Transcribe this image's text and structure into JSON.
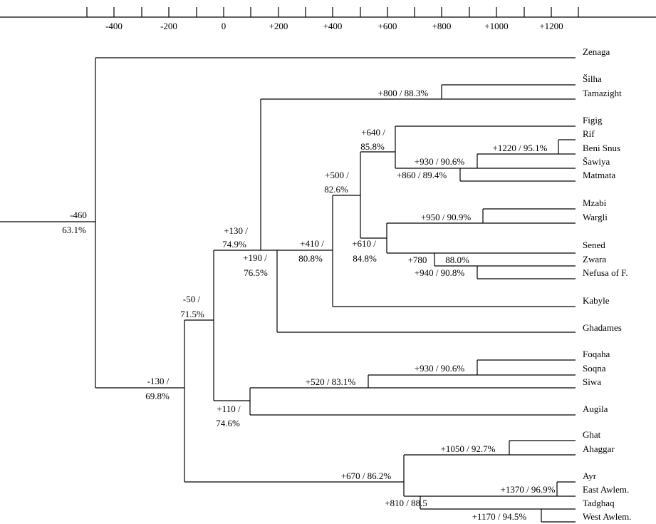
{
  "axis": {
    "ticks": [
      "-400",
      "-200",
      "0",
      "+200",
      "+400",
      "+600",
      "+800",
      "+1000",
      "+1200"
    ]
  },
  "leaves": [
    "Zenaga",
    "Šilha",
    "Tamazight",
    "Figig",
    "Rif",
    "Beni Snus",
    "Šawiya",
    "Matmata",
    "Mzabi",
    "Wargli",
    "Sened",
    "Zwara",
    "Nefusa of F.",
    "Kabyle",
    "Ghadames",
    "Foqaha",
    "Soqna",
    "Siwa",
    "Augila",
    "Ghat",
    "Ahaggar",
    "Ayr",
    "East Awlem.",
    "Tadghaq",
    "West Awlem."
  ],
  "nodes": {
    "root": [
      "-460",
      "63.1%"
    ],
    "n130": [
      "-130 /",
      "69.8%"
    ],
    "n50": [
      "-50 /",
      "71.5%"
    ],
    "n130b": [
      "+130 /",
      "74.9%"
    ],
    "n190": [
      "+190 /",
      "76.5%"
    ],
    "n410": [
      "+410 /",
      "80.8%"
    ],
    "n500": [
      "+500 /",
      "82.6%"
    ],
    "n640": [
      "+640 /",
      "85.8%"
    ],
    "n610": [
      "+610 /",
      "84.8%"
    ],
    "n110": [
      "+110 /",
      "74.6%"
    ],
    "n800": "+800 / 88.3%",
    "n1220": "+1220 / 95.1%",
    "n930a": "+930 / 90.6%",
    "n860": "+860 / 89.4%",
    "n950": "+950 / 90.9%",
    "n780a": "+780",
    "n780b": "88.0%",
    "n940": "+940 / 90.8%",
    "n930b": "+930 / 90.6%",
    "n520": "+520 / 83.1%",
    "n1050": "+1050 / 92.7%",
    "n670": "+670 / 86.2%",
    "n1370": "+1370 / 96.9%",
    "n810": "+810 / 88.5",
    "n1170": "+1170 / 94.5%"
  }
}
